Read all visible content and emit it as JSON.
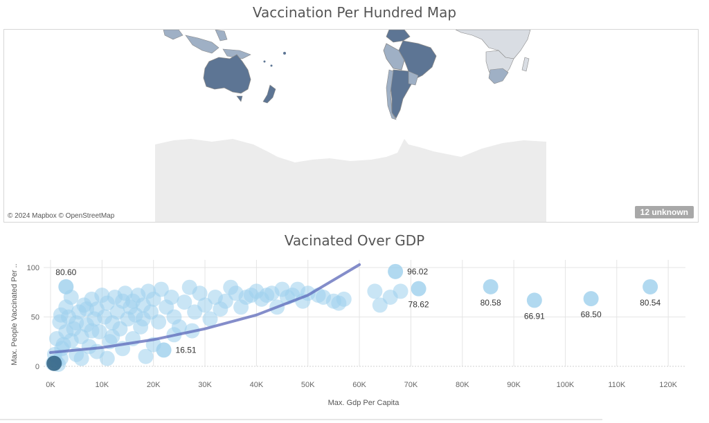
{
  "map": {
    "title": "Vaccination Per Hundred Map",
    "attribution": "© 2024 Mapbox © OpenStreetMap",
    "unknown_badge": "12 unknown",
    "colors": {
      "high": "#5d7594",
      "mid": "#9fb0c5",
      "low": "#d9dde3",
      "landmass": "#ececec",
      "border": "#888888"
    }
  },
  "scatter": {
    "title": "Vacinated Over GDP",
    "colors": {
      "bubble": "#9dd0ec",
      "dense": "#2f5f80",
      "trend": "#5b67b8",
      "grid": "#e4e4e4"
    }
  },
  "chart_data": {
    "type": "scatter",
    "xlabel": "Max. Gdp Per Capita",
    "ylabel": "Max. People Vaccinated Per ..",
    "x_ticks": [
      "0K",
      "10K",
      "20K",
      "30K",
      "40K",
      "50K",
      "60K",
      "70K",
      "80K",
      "90K",
      "100K",
      "110K",
      "120K"
    ],
    "y_ticks": [
      "0",
      "50",
      "100"
    ],
    "xlim": [
      0,
      122000
    ],
    "ylim": [
      0,
      105
    ],
    "grid": true,
    "trend_line": {
      "type": "exponential",
      "x": [
        0,
        10000,
        20000,
        30000,
        40000,
        50000,
        60000
      ],
      "y": [
        14,
        19,
        27,
        38,
        52,
        72,
        103
      ]
    },
    "labeled_points": [
      {
        "x": 3000,
        "y": 80.6,
        "label": "80.60",
        "label_pos": "above"
      },
      {
        "x": 22000,
        "y": 16.51,
        "label": "16.51",
        "label_pos": "right"
      },
      {
        "x": 67000,
        "y": 96.02,
        "label": "96.02",
        "label_pos": "right"
      },
      {
        "x": 71500,
        "y": 78.62,
        "label": "78.62",
        "label_pos": "below"
      },
      {
        "x": 85500,
        "y": 80.58,
        "label": "80.58",
        "label_pos": "below"
      },
      {
        "x": 94000,
        "y": 66.91,
        "label": "66.91",
        "label_pos": "below"
      },
      {
        "x": 105000,
        "y": 68.5,
        "label": "68.50",
        "label_pos": "below"
      },
      {
        "x": 116500,
        "y": 80.54,
        "label": "80.54",
        "label_pos": "below"
      }
    ],
    "points": [
      [
        500,
        3
      ],
      [
        1000,
        5
      ],
      [
        1500,
        2
      ],
      [
        800,
        12
      ],
      [
        2000,
        8
      ],
      [
        2500,
        22
      ],
      [
        1200,
        28
      ],
      [
        3000,
        35
      ],
      [
        1800,
        45
      ],
      [
        2200,
        18
      ],
      [
        3500,
        50
      ],
      [
        4000,
        26
      ],
      [
        4500,
        38
      ],
      [
        5000,
        12
      ],
      [
        5500,
        55
      ],
      [
        6000,
        30
      ],
      [
        6500,
        62
      ],
      [
        7000,
        42
      ],
      [
        7500,
        20
      ],
      [
        8000,
        68
      ],
      [
        8500,
        48
      ],
      [
        9000,
        58
      ],
      [
        9500,
        35
      ],
      [
        10000,
        72
      ],
      [
        10500,
        50
      ],
      [
        11000,
        64
      ],
      [
        11500,
        25
      ],
      [
        12000,
        44
      ],
      [
        12500,
        70
      ],
      [
        13000,
        55
      ],
      [
        13500,
        38
      ],
      [
        14000,
        66
      ],
      [
        14500,
        74
      ],
      [
        15000,
        48
      ],
      [
        15500,
        60
      ],
      [
        16000,
        28
      ],
      [
        16500,
        52
      ],
      [
        17000,
        72
      ],
      [
        17500,
        40
      ],
      [
        18000,
        62
      ],
      [
        18500,
        10
      ],
      [
        19000,
        76
      ],
      [
        19500,
        55
      ],
      [
        20000,
        68
      ],
      [
        21000,
        45
      ],
      [
        21500,
        78
      ],
      [
        22500,
        60
      ],
      [
        23500,
        70
      ],
      [
        24000,
        50
      ],
      [
        25000,
        40
      ],
      [
        26000,
        65
      ],
      [
        27000,
        80
      ],
      [
        27500,
        36
      ],
      [
        28000,
        55
      ],
      [
        29000,
        74
      ],
      [
        30000,
        62
      ],
      [
        31000,
        48
      ],
      [
        32000,
        70
      ],
      [
        33000,
        58
      ],
      [
        34000,
        66
      ],
      [
        35000,
        80
      ],
      [
        36000,
        74
      ],
      [
        37000,
        60
      ],
      [
        38000,
        70
      ],
      [
        39000,
        72
      ],
      [
        40000,
        76
      ],
      [
        41000,
        68
      ],
      [
        42000,
        72
      ],
      [
        43000,
        74
      ],
      [
        44000,
        60
      ],
      [
        45000,
        78
      ],
      [
        46000,
        70
      ],
      [
        47000,
        72
      ],
      [
        48000,
        78
      ],
      [
        49000,
        66
      ],
      [
        50000,
        74
      ],
      [
        52000,
        72
      ],
      [
        53000,
        70
      ],
      [
        55000,
        66
      ],
      [
        56000,
        64
      ],
      [
        57000,
        68
      ],
      [
        63000,
        76
      ],
      [
        64000,
        62
      ],
      [
        66000,
        70
      ],
      [
        68000,
        76
      ],
      [
        3000,
        60
      ],
      [
        6000,
        8
      ],
      [
        2000,
        52
      ],
      [
        9000,
        15
      ],
      [
        12000,
        30
      ],
      [
        5000,
        44
      ],
      [
        8000,
        36
      ],
      [
        14000,
        18
      ],
      [
        16000,
        66
      ],
      [
        4000,
        70
      ],
      [
        7000,
        58
      ],
      [
        11000,
        8
      ],
      [
        20000,
        22
      ],
      [
        24000,
        32
      ],
      [
        18000,
        48
      ]
    ]
  }
}
